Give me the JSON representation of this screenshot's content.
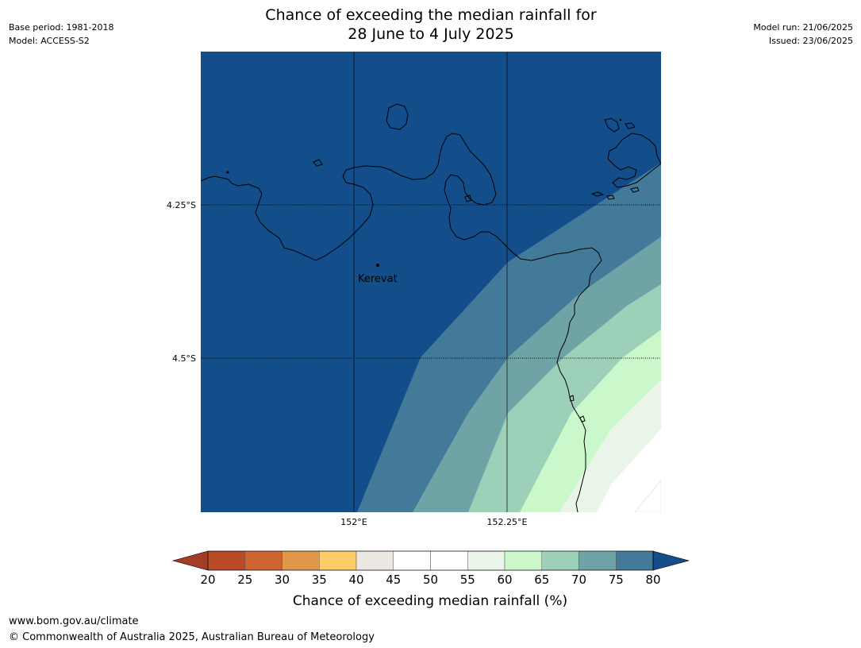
{
  "header": {
    "base_period": "Base period: 1981-2018",
    "model": "Model: ACCESS-S2",
    "title_line1": "Chance of exceeding the median rainfall for",
    "title_line2": "28 June to 4 July 2025",
    "model_run": "Model run: 21/06/2025",
    "issued": "Issued: 23/06/2025"
  },
  "map": {
    "lat_labels": [
      "4.25°S",
      "4.5°S"
    ],
    "lon_labels": [
      "152°E",
      "152.25°E"
    ],
    "place": "Kerevat",
    "zone_colors": [
      "#134e8a",
      "#437a9a",
      "#6fa3a5",
      "#9dd0b8",
      "#caf8ca",
      "#e8f5e8",
      "#ffffff"
    ]
  },
  "colorbar": {
    "ticks": [
      "20",
      "25",
      "30",
      "35",
      "40",
      "45",
      "50",
      "55",
      "60",
      "65",
      "70",
      "75",
      "80"
    ],
    "colors": [
      "#a33d27",
      "#b84b26",
      "#cf6433",
      "#e39749",
      "#fecc66",
      "#ebe8e3",
      "#ffffff",
      "#ffffff",
      "#e8f5e8",
      "#caf8ca",
      "#9dd0b8",
      "#6fa3a5",
      "#437a9a",
      "#134e8a"
    ],
    "label": "Chance of exceeding median rainfall (%)"
  },
  "footer": {
    "url": "www.bom.gov.au/climate",
    "copyright": "© Commonwealth of Australia 2025, Australian Bureau of Meteorology"
  }
}
